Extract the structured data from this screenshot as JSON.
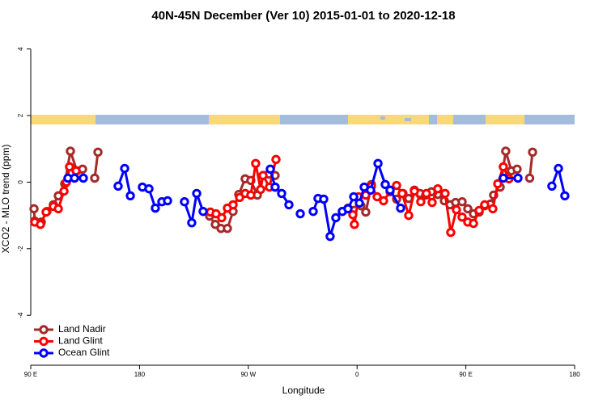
{
  "chart_data": {
    "type": "line",
    "title": "40N-45N December (Ver 10)   2015-01-01 to 2020-12-18",
    "x_label": "Longitude",
    "y_label": "XCO2 - MLO trend (ppm)",
    "xlim": [
      90,
      540
    ],
    "ylim": [
      -5.5,
      4.5
    ],
    "xticks": [
      {
        "value": 90,
        "label": "90 E"
      },
      180,
      {
        "value": 270,
        "label": "90 W"
      },
      {
        "value": 360,
        "label": "0"
      },
      {
        "value": 450,
        "label": "90 E"
      },
      {
        "value": 540,
        "label": "180"
      }
    ],
    "yticks": [
      -4,
      -2,
      0,
      2,
      4
    ],
    "legend": "bottom-left",
    "series": [
      {
        "name": "Land Nadir",
        "color": "#a52a2a",
        "x": [
          92.7,
          93.3,
          98.7,
          103.4,
          108.7,
          112.8,
          118.1,
          122.8,
          128.2,
          132.9,
          null,
          142.9,
          145.6,
          null,
          238.0,
          242.7,
          247.4,
          252.7,
          257.4,
          262.1,
          267.4,
          272.1,
          277.5,
          282.2,
          286.9,
          292.2,
          null,
          347.8,
          352.5,
          363.2,
          367.2,
          371.9,
          null,
          392.7,
          398.0,
          402.7,
          407.4,
          412.1,
          416.8,
          421.5,
          426.8,
          432.2,
          436.9,
          441.5,
          446.9,
          451.6,
          456.3,
          461.0,
          465.6,
          470.3,
          473.0,
          478.4,
          483.0,
          487.7,
          492.4,
          null,
          502.8,
          505.2
        ],
        "values": [
          -0.8,
          -1.17,
          -1.2,
          -0.88,
          -0.68,
          -0.41,
          -0.05,
          0.93,
          0.34,
          0.39,
          null,
          0.12,
          0.9,
          null,
          -1.02,
          -1.27,
          -1.39,
          -1.39,
          -0.88,
          -0.37,
          0.1,
          0.05,
          -0.39,
          0.2,
          0.24,
          0.2,
          null,
          -0.88,
          -0.78,
          -0.71,
          -0.9,
          -0.07,
          null,
          -0.51,
          -0.34,
          -0.49,
          -0.24,
          -0.34,
          -0.39,
          -0.29,
          -0.37,
          -0.56,
          -0.68,
          -0.61,
          -0.59,
          -0.8,
          -0.95,
          -0.9,
          -0.71,
          -0.66,
          -0.39,
          -0.15,
          0.93,
          0.34,
          0.39,
          null,
          0.12,
          0.9
        ]
      },
      {
        "name": "Land Glint",
        "color": "#ff0000",
        "x": [
          93.3,
          98.0,
          102.7,
          108.7,
          112.8,
          117.5,
          119.5,
          122.1,
          127.5,
          null,
          238.6,
          243.3,
          248.0,
          252.7,
          257.4,
          262.8,
          267.4,
          272.1,
          276.1,
          280.2,
          282.2,
          287.5,
          292.9,
          null,
          356.5,
          357.8,
          361.2,
          367.2,
          371.9,
          376.6,
          381.9,
          387.3,
          392.7,
          397.3,
          402.7,
          407.4,
          412.7,
          417.4,
          422.1,
          426.8,
          432.8,
          437.5,
          442.2,
          446.9,
          451.6,
          456.3,
          461.0,
          465.6,
          472.3,
          476.4,
          481.0,
          485.7
        ],
        "values": [
          -1.2,
          -1.27,
          -0.9,
          -0.73,
          -0.8,
          -0.27,
          0.0,
          0.46,
          0.34,
          null,
          -0.9,
          -0.95,
          -1.07,
          -0.78,
          -0.68,
          -0.46,
          -0.34,
          -0.39,
          0.56,
          -0.22,
          0.2,
          -0.15,
          0.68,
          null,
          -0.98,
          -1.27,
          -0.44,
          -0.39,
          -0.12,
          -0.44,
          -0.56,
          -0.29,
          -0.1,
          -0.34,
          -1.0,
          -0.27,
          -0.59,
          -0.34,
          -0.61,
          -0.2,
          -0.34,
          -1.51,
          -0.83,
          -1.05,
          -1.2,
          -1.24,
          -0.85,
          -0.68,
          -0.8,
          -0.05,
          0.46,
          0.1
        ]
      },
      {
        "name": "Ocean Glint",
        "color": "#0000ff",
        "x": [
          120.8,
          126.2,
          133.5,
          null,
          162.3,
          167.7,
          172.4,
          null,
          182.4,
          187.8,
          193.1,
          198.5,
          203.2,
          null,
          217.2,
          223.2,
          227.3,
          232.6,
          null,
          288.2,
          292.2,
          297.6,
          303.6,
          null,
          313.0,
          null,
          323.7,
          327.7,
          332.4,
          337.7,
          342.4,
          347.8,
          352.5,
          357.2,
          361.9,
          365.9,
          371.2,
          377.3,
          383.3,
          387.3,
          396.0,
          null,
          481.0,
          493.1,
          null,
          521.2,
          526.6,
          531.9
        ],
        "values": [
          0.12,
          0.12,
          0.12,
          null,
          -0.12,
          0.41,
          -0.41,
          null,
          -0.15,
          -0.2,
          -0.78,
          -0.59,
          -0.56,
          null,
          -0.59,
          -1.22,
          -0.34,
          -0.88,
          null,
          0.39,
          -0.15,
          -0.34,
          -0.68,
          null,
          -0.95,
          null,
          -0.88,
          -0.49,
          -0.51,
          -1.63,
          -1.07,
          -0.88,
          -0.8,
          -0.44,
          -0.63,
          -0.15,
          -0.24,
          0.56,
          -0.07,
          -0.24,
          -0.78,
          null,
          0.12,
          0.12,
          null,
          -0.12,
          0.41,
          -0.41
        ]
      }
    ]
  }
}
